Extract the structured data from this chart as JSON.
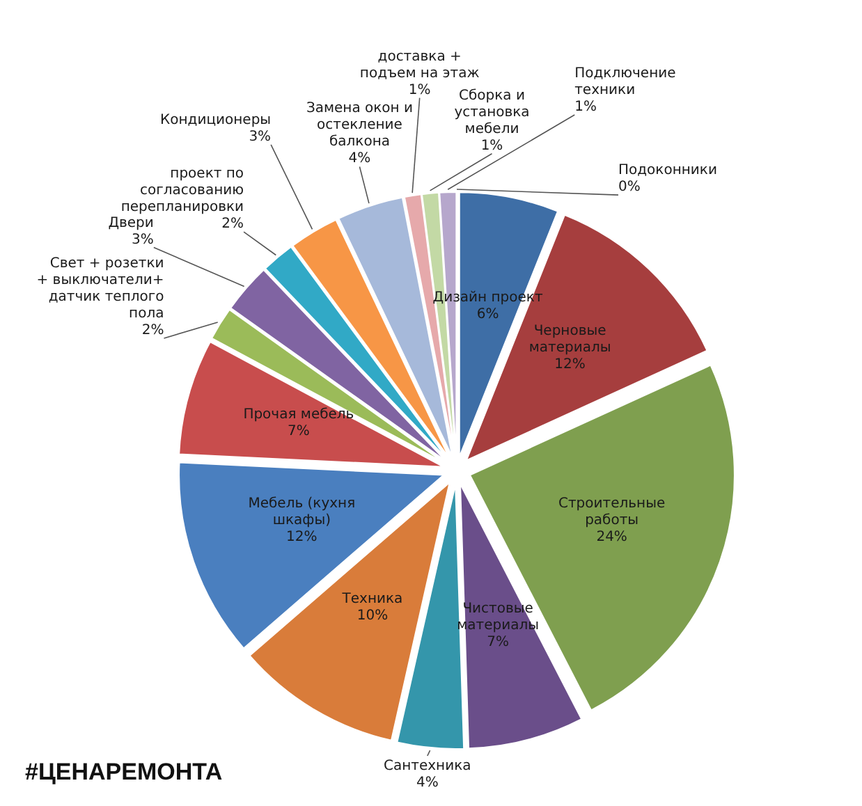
{
  "chart_data": {
    "type": "pie",
    "title": "#ЦЕНАРЕМОНТА",
    "categories": [
      "Дизайн проект",
      "Черновые материалы",
      "Строительные работы",
      "Чистовые материалы",
      "Сантехника",
      "Техника",
      "Мебель (кухня шкафы)",
      "Прочая мебель",
      "Свет + розетки + выключатели+ датчик теплого пола",
      "Двери",
      "проект по согласованию перепланировки",
      "Кондиционеры",
      "Замена окон и остекление балкона",
      "доставка + подъем на этаж",
      "Сборка и установка мебели",
      "Подключение техники",
      "Подоконники"
    ],
    "values": [
      6,
      12,
      24,
      7,
      4,
      10,
      12,
      7,
      2,
      3,
      2,
      3,
      4,
      1,
      1,
      1,
      0
    ],
    "value_labels": [
      "6%",
      "12%",
      "24%",
      "7%",
      "4%",
      "10%",
      "12%",
      "7%",
      "2%",
      "3%",
      "2%",
      "3%",
      "4%",
      "1%",
      "1%",
      "1%",
      "0%"
    ],
    "colors": [
      "#3e6ea6",
      "#a63e3e",
      "#7f9f4f",
      "#6a4e8a",
      "#3496ab",
      "#d97c3a",
      "#4a7fbf",
      "#c84d4d",
      "#9bbb59",
      "#8064a2",
      "#31a9c6",
      "#f79646",
      "#a6b9da",
      "#e6a9ab",
      "#c3d9a5",
      "#b6a7cc",
      "#b7dde8"
    ]
  }
}
